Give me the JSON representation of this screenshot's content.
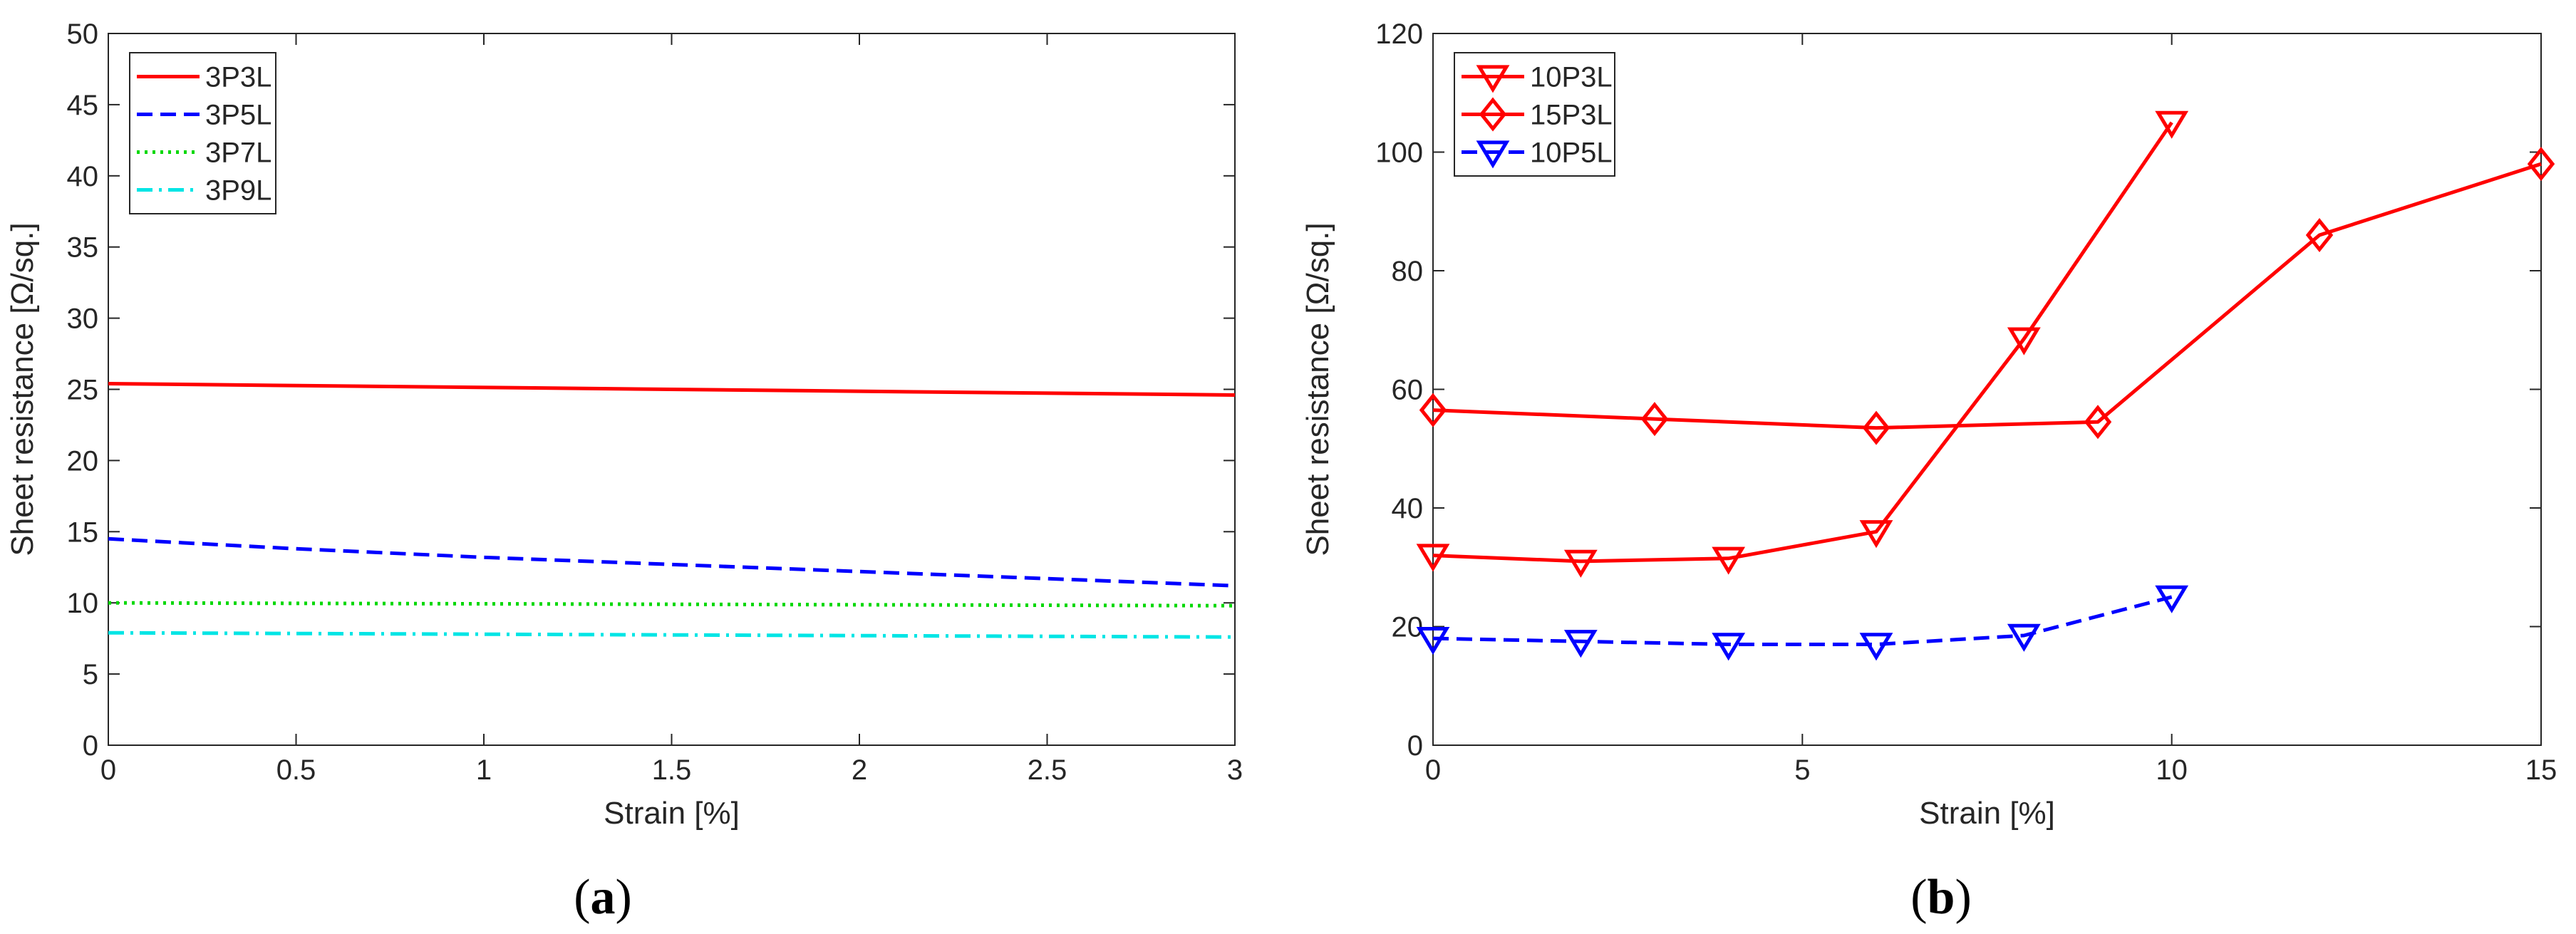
{
  "chart_data": [
    {
      "panel": "a",
      "caption": "(a)",
      "type": "line",
      "xlabel": "Strain [%]",
      "ylabel": "Sheet resistance [Ω/sq.]",
      "xlim": [
        0,
        3
      ],
      "ylim": [
        0,
        50
      ],
      "xticks": [
        0,
        0.5,
        1,
        1.5,
        2,
        2.5,
        3
      ],
      "xtick_labels": [
        "0",
        "0.5",
        "1",
        "1.5",
        "2",
        "2.5",
        "3"
      ],
      "yticks": [
        0,
        5,
        10,
        15,
        20,
        25,
        30,
        35,
        40,
        45,
        50
      ],
      "ytick_labels": [
        "0",
        "5",
        "10",
        "15",
        "20",
        "25",
        "30",
        "35",
        "40",
        "45",
        "50"
      ],
      "legend_position": "top-left",
      "series": [
        {
          "name": "3P3L",
          "color": "#ff0000",
          "dash": "solid",
          "marker": "none",
          "x": [
            0,
            3
          ],
          "y": [
            25.4,
            24.6
          ]
        },
        {
          "name": "3P5L",
          "color": "#0000ff",
          "dash": "dashed",
          "marker": "none",
          "x": [
            0,
            0.5,
            1,
            1.5,
            2,
            2.5,
            3
          ],
          "y": [
            14.5,
            13.8,
            13.2,
            12.7,
            12.2,
            11.7,
            11.2
          ]
        },
        {
          "name": "3P7L",
          "color": "#00d800",
          "dash": "dotted",
          "marker": "none",
          "x": [
            0,
            3
          ],
          "y": [
            10.0,
            9.8
          ]
        },
        {
          "name": "3P9L",
          "color": "#00e5e5",
          "dash": "dashdot",
          "marker": "none",
          "x": [
            0,
            3
          ],
          "y": [
            7.9,
            7.6
          ]
        }
      ]
    },
    {
      "panel": "b",
      "caption": "(b)",
      "type": "line",
      "xlabel": "Strain [%]",
      "ylabel": "Sheet resistance [Ω/sq.]",
      "xlim": [
        0,
        15
      ],
      "ylim": [
        0,
        120
      ],
      "xticks": [
        0,
        5,
        10,
        15
      ],
      "xtick_labels": [
        "0",
        "5",
        "10",
        "15"
      ],
      "yticks": [
        0,
        20,
        40,
        60,
        80,
        100,
        120
      ],
      "ytick_labels": [
        "0",
        "20",
        "40",
        "60",
        "80",
        "100",
        "120"
      ],
      "legend_position": "top-left",
      "series": [
        {
          "name": "10P3L",
          "color": "#ff0000",
          "dash": "solid",
          "marker": "triangle-down",
          "x": [
            0,
            2,
            4,
            6,
            8,
            10
          ],
          "y": [
            32,
            31,
            31.5,
            36,
            68.5,
            105
          ]
        },
        {
          "name": "15P3L",
          "color": "#ff0000",
          "dash": "solid",
          "marker": "diamond",
          "x": [
            0,
            3,
            6,
            9,
            12,
            15
          ],
          "y": [
            56.5,
            55,
            53.5,
            54.5,
            86,
            98
          ]
        },
        {
          "name": "10P5L",
          "color": "#0000ff",
          "dash": "dashed",
          "marker": "triangle-down",
          "x": [
            0,
            2,
            4,
            6,
            8,
            10
          ],
          "y": [
            18,
            17.5,
            17,
            17,
            18.5,
            25
          ]
        }
      ]
    }
  ]
}
